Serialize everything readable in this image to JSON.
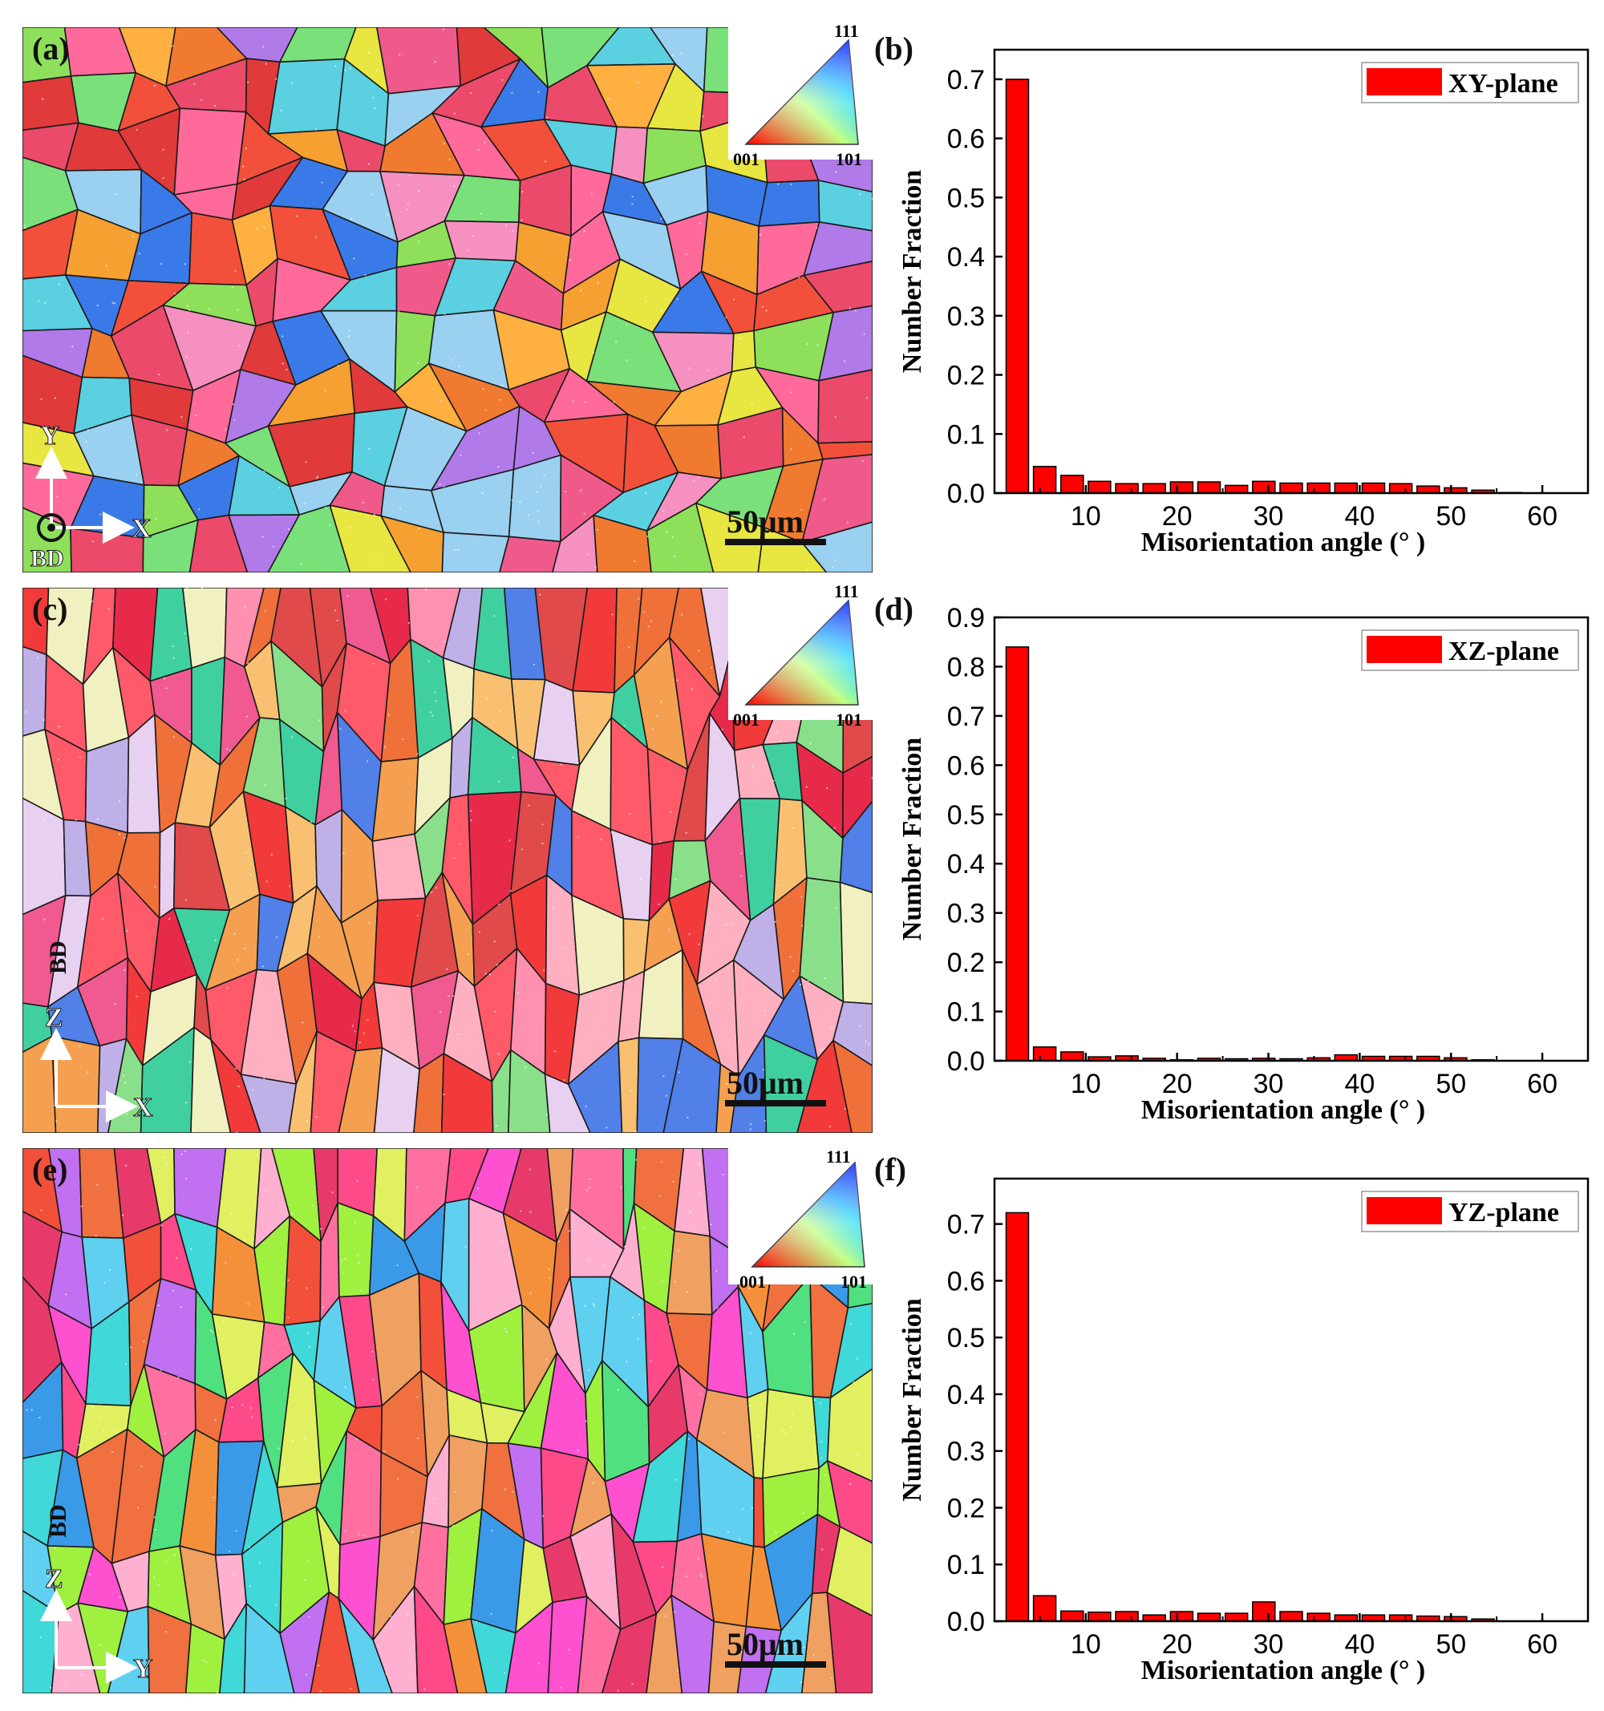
{
  "figure": {
    "rows": [
      {
        "map": {
          "panel_label": "(a)",
          "ipf_legend": {
            "top": "111",
            "left": "001",
            "right": "101"
          },
          "scale_bar": "50μm",
          "axes": {
            "vertical": "Y",
            "horizontal": "X",
            "normal": "BD"
          },
          "colors": [
            "#f2503a",
            "#f05a8a",
            "#f5a030",
            "#8ee05a",
            "#e8e640",
            "#3a7ae8",
            "#ff6a9a",
            "#f07a30",
            "#5ad0e0",
            "#ec4a6a",
            "#b07ae8",
            "#ffb040",
            "#e03a3a",
            "#f590c0",
            "#7ae07a",
            "#9ad0f0"
          ]
        }
      },
      {
        "map": {
          "panel_label": "(c)",
          "ipf_legend": {
            "top": "111",
            "left": "001",
            "right": "101"
          },
          "scale_bar": "50μm",
          "axes": {
            "vertical": "Z",
            "horizontal": "X",
            "bd_label": "BD"
          },
          "colors": [
            "#f23a3a",
            "#ff5a6a",
            "#f0703a",
            "#e8d0f0",
            "#f0f0c0",
            "#8ae08a",
            "#f5a050",
            "#ff90b0",
            "#e04a4a",
            "#c0b0e8",
            "#5080e8",
            "#f05a90",
            "#f8c070",
            "#40d0a0",
            "#ffb0c0",
            "#e82a4a"
          ]
        }
      },
      {
        "map": {
          "panel_label": "(e)",
          "ipf_legend": {
            "top": "111",
            "left": "001",
            "right": "101"
          },
          "scale_bar": "50μm",
          "axes": {
            "vertical": "Z",
            "horizontal": "Y",
            "bd_label": "BD"
          },
          "colors": [
            "#ff50d0",
            "#f2503a",
            "#f5903a",
            "#60d0f0",
            "#a0f040",
            "#3a9ae8",
            "#ff70a0",
            "#f07040",
            "#50e080",
            "#e83a6a",
            "#c070f0",
            "#ffb0d0",
            "#f0a060",
            "#40d8d8",
            "#ff4a8a",
            "#e0f060"
          ]
        }
      }
    ]
  },
  "chart_data": [
    {
      "type": "bar",
      "panel_label": "(b)",
      "legend": {
        "label": "XY-plane",
        "position": "top-right"
      },
      "xlabel": "Misorientation angle (°  )",
      "ylabel": "Number Fraction",
      "x_ticks": [
        10,
        20,
        30,
        40,
        50,
        60
      ],
      "y_ticks": [
        0.0,
        0.1,
        0.2,
        0.3,
        0.4,
        0.5,
        0.6,
        0.7
      ],
      "xlim": [
        0,
        65
      ],
      "ylim": [
        0,
        0.75
      ],
      "bar_color": "#ff0000",
      "x": [
        2.5,
        5.5,
        8.5,
        11.5,
        14.5,
        17.5,
        20.5,
        23.5,
        26.5,
        29.5,
        32.5,
        35.5,
        38.5,
        41.5,
        44.5,
        47.5,
        50.5,
        53.5,
        56.5,
        59.5
      ],
      "values": [
        0.7,
        0.045,
        0.03,
        0.02,
        0.016,
        0.016,
        0.019,
        0.019,
        0.013,
        0.02,
        0.017,
        0.017,
        0.017,
        0.017,
        0.016,
        0.012,
        0.009,
        0.005,
        0.001,
        0.0
      ]
    },
    {
      "type": "bar",
      "panel_label": "(d)",
      "legend": {
        "label": "XZ-plane",
        "position": "top-right"
      },
      "xlabel": "Misorientation angle (°  )",
      "ylabel": "Number Fraction",
      "x_ticks": [
        10,
        20,
        30,
        40,
        50,
        60
      ],
      "y_ticks": [
        0.0,
        0.1,
        0.2,
        0.3,
        0.4,
        0.5,
        0.6,
        0.7,
        0.8,
        0.9
      ],
      "xlim": [
        0,
        65
      ],
      "ylim": [
        0,
        0.9
      ],
      "bar_color": "#ff0000",
      "x": [
        2.5,
        5.5,
        8.5,
        11.5,
        14.5,
        17.5,
        20.5,
        23.5,
        26.5,
        29.5,
        32.5,
        35.5,
        38.5,
        41.5,
        44.5,
        47.5,
        50.5,
        53.5,
        56.5,
        59.5
      ],
      "values": [
        0.84,
        0.028,
        0.018,
        0.008,
        0.01,
        0.005,
        0.002,
        0.005,
        0.004,
        0.005,
        0.004,
        0.006,
        0.012,
        0.009,
        0.009,
        0.009,
        0.006,
        0.002,
        0.0,
        0.0
      ]
    },
    {
      "type": "bar",
      "panel_label": "(f)",
      "legend": {
        "label": "YZ-plane",
        "position": "top-right"
      },
      "xlabel": "Misorientation angle (°  )",
      "ylabel": "Number Fraction",
      "x_ticks": [
        10,
        20,
        30,
        40,
        50,
        60
      ],
      "y_ticks": [
        0.0,
        0.1,
        0.2,
        0.3,
        0.4,
        0.5,
        0.6,
        0.7
      ],
      "xlim": [
        0,
        65
      ],
      "ylim": [
        0,
        0.78
      ],
      "bar_color": "#ff0000",
      "x": [
        2.5,
        5.5,
        8.5,
        11.5,
        14.5,
        17.5,
        20.5,
        23.5,
        26.5,
        29.5,
        32.5,
        35.5,
        38.5,
        41.5,
        44.5,
        47.5,
        50.5,
        53.5,
        56.5,
        59.5
      ],
      "values": [
        0.72,
        0.045,
        0.018,
        0.016,
        0.017,
        0.011,
        0.017,
        0.014,
        0.014,
        0.034,
        0.017,
        0.014,
        0.011,
        0.011,
        0.011,
        0.009,
        0.008,
        0.004,
        0.0,
        0.0
      ]
    }
  ]
}
